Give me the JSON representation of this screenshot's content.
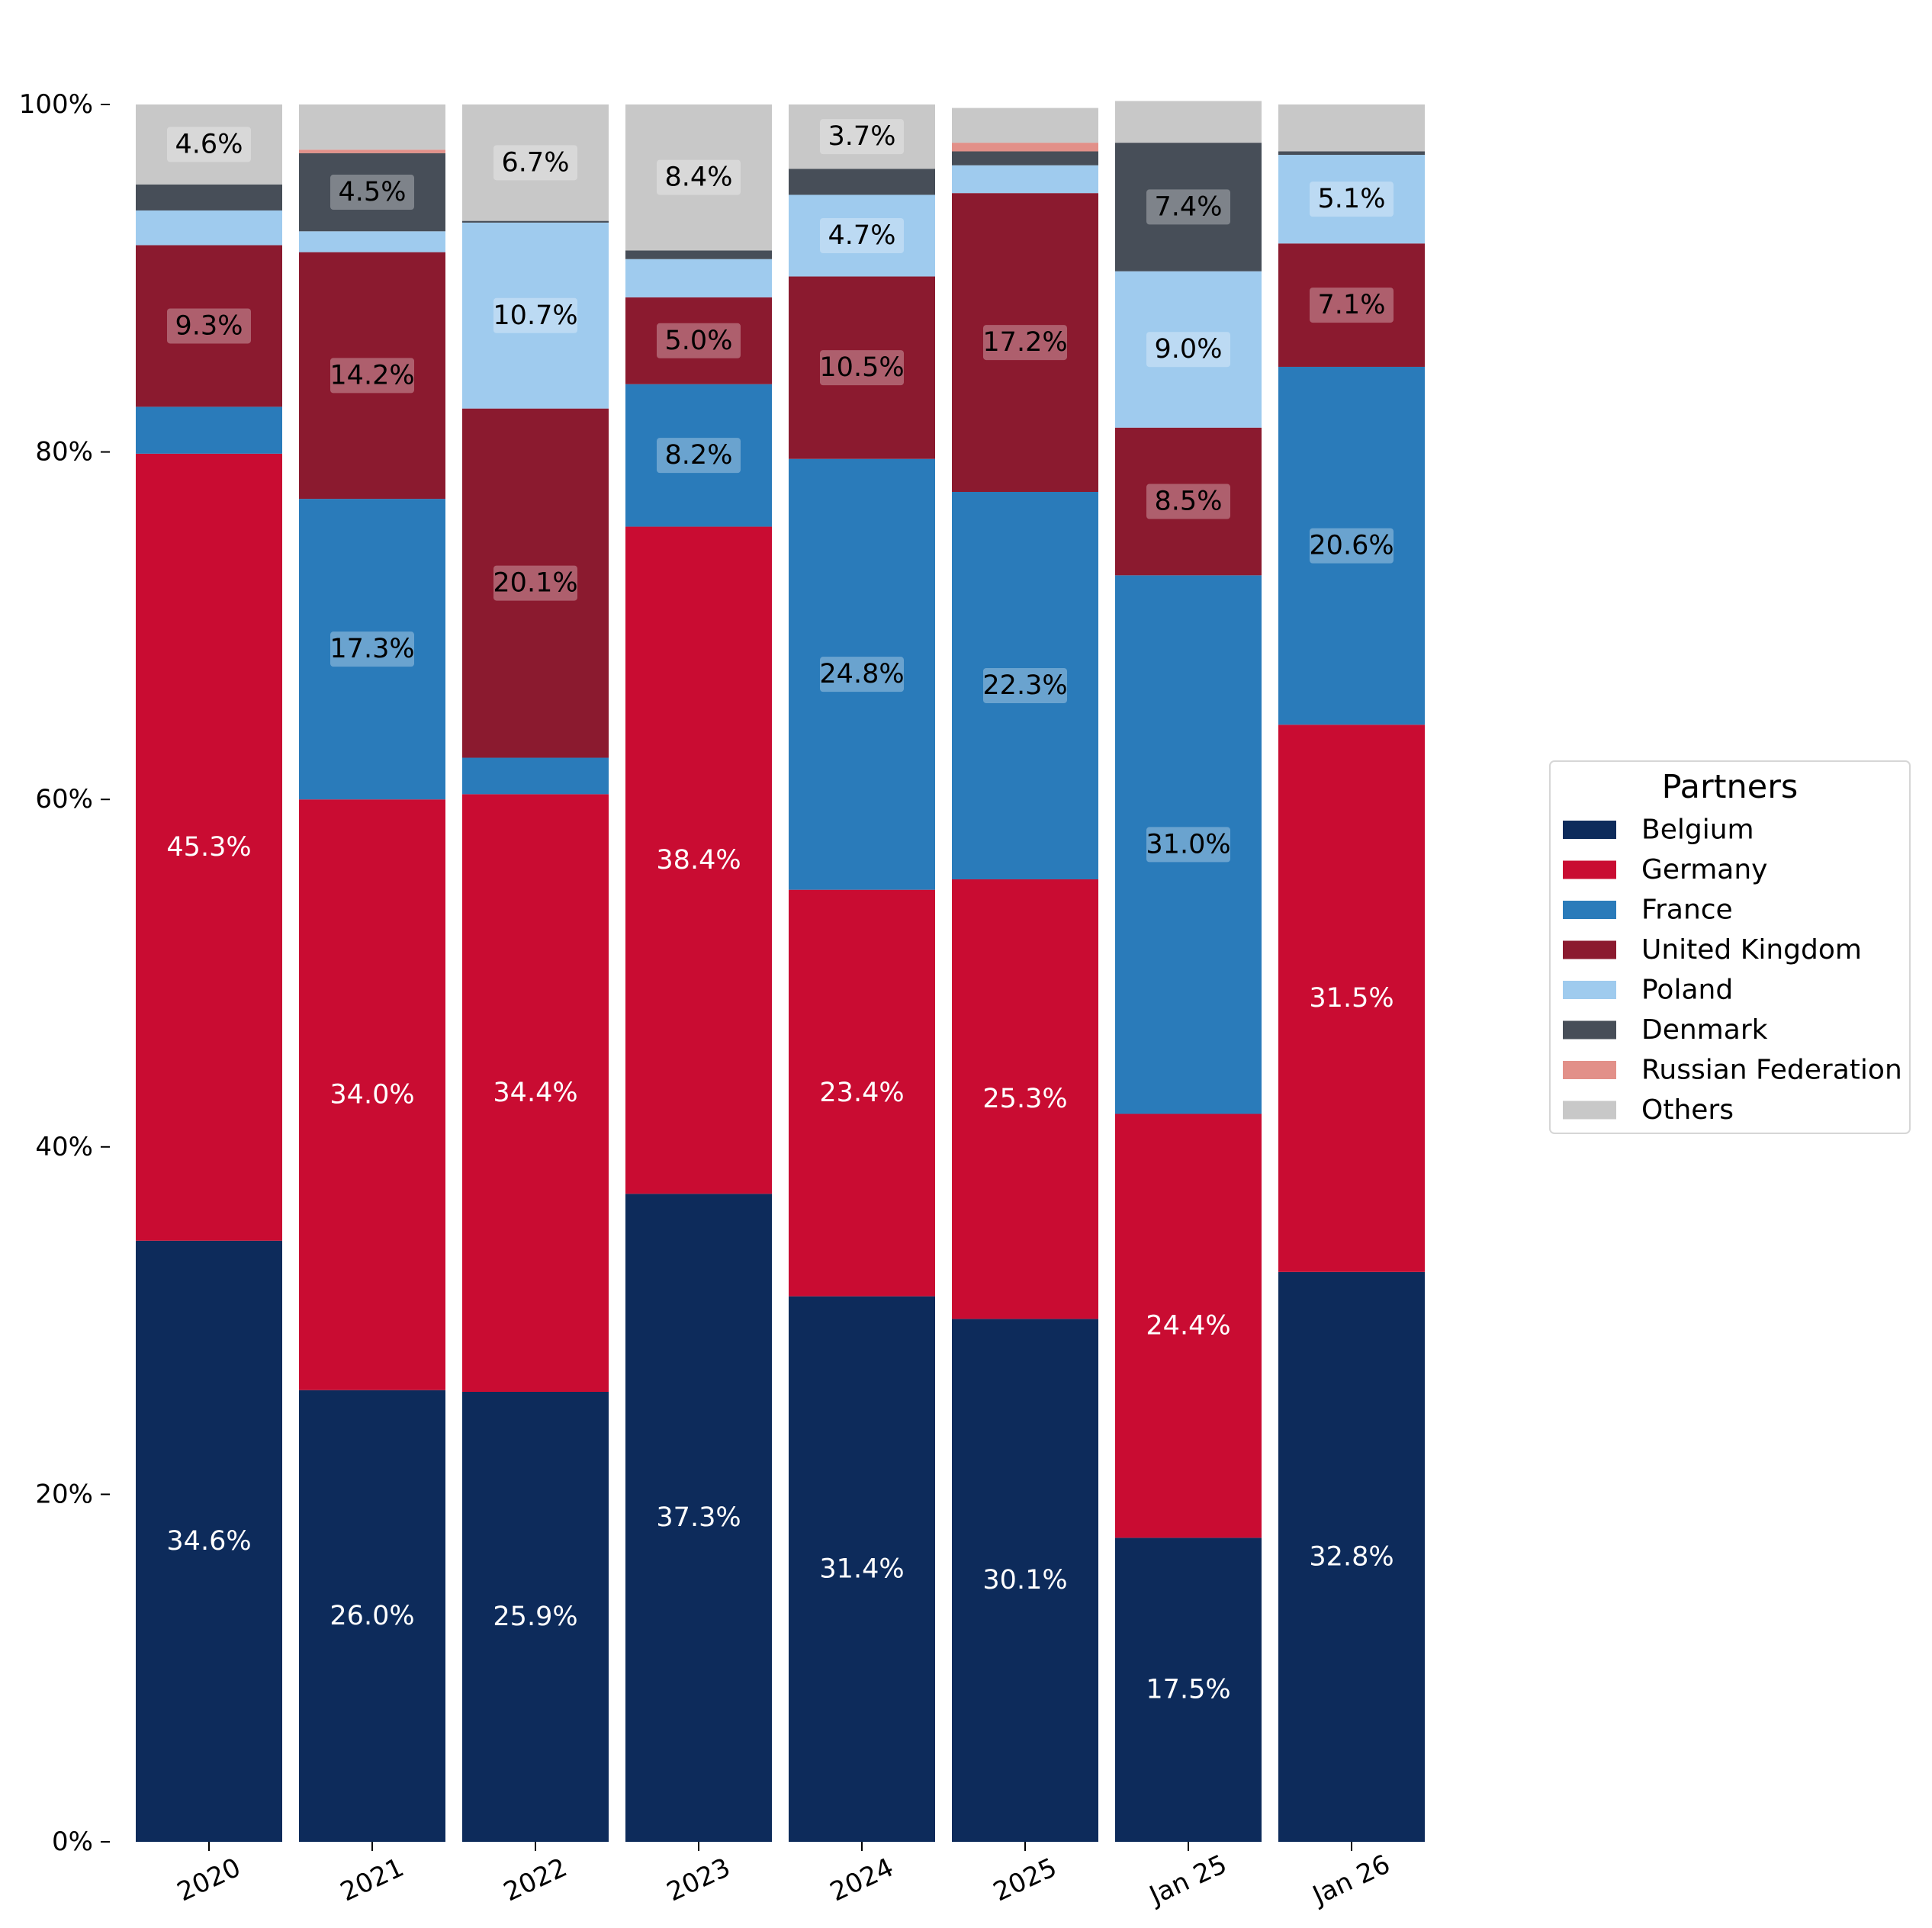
{
  "chart_data": {
    "type": "bar",
    "stacked": true,
    "categories": [
      "2020",
      "2021",
      "2022",
      "2023",
      "2024",
      "2025",
      "Jan 25",
      "Jan 26"
    ],
    "ylim": [
      0,
      100
    ],
    "yticks": [
      0,
      20,
      40,
      60,
      80,
      100
    ],
    "ytick_labels": [
      "0%",
      "20%",
      "40%",
      "60%",
      "80%",
      "100%"
    ],
    "legend": {
      "title": "Partners",
      "placement": "center-right"
    },
    "series": [
      {
        "name": "Belgium",
        "color": "#0d2b5b",
        "values": [
          34.6,
          26.0,
          25.9,
          37.3,
          31.4,
          30.1,
          17.5,
          32.8
        ],
        "labels": [
          "34.6%",
          "26.0%",
          "25.9%",
          "37.3%",
          "31.4%",
          "30.1%",
          "17.5%",
          "32.8%"
        ]
      },
      {
        "name": "Germany",
        "color": "#c90c32",
        "values": [
          45.3,
          34.0,
          34.4,
          38.4,
          23.4,
          25.3,
          24.4,
          31.5
        ],
        "labels": [
          "45.3%",
          "34.0%",
          "34.4%",
          "38.4%",
          "23.4%",
          "25.3%",
          "24.4%",
          "31.5%"
        ]
      },
      {
        "name": "France",
        "color": "#2a7bba",
        "values": [
          2.7,
          17.3,
          2.1,
          8.2,
          24.8,
          22.3,
          31.0,
          20.6
        ],
        "labels": [
          "",
          "17.3%",
          "",
          "8.2%",
          "24.8%",
          "22.3%",
          "31.0%",
          "20.6%"
        ]
      },
      {
        "name": "United Kingdom",
        "color": "#8b1a2f",
        "values": [
          9.3,
          14.2,
          20.1,
          5.0,
          10.5,
          17.2,
          8.5,
          7.1
        ],
        "labels": [
          "9.3%",
          "14.2%",
          "20.1%",
          "5.0%",
          "10.5%",
          "17.2%",
          "8.5%",
          "7.1%"
        ]
      },
      {
        "name": "Poland",
        "color": "#9fcbee",
        "values": [
          2.0,
          1.2,
          10.7,
          2.2,
          4.7,
          1.6,
          9.0,
          5.1
        ],
        "labels": [
          "",
          "",
          "10.7%",
          "",
          "4.7%",
          "",
          "9.0%",
          "5.1%"
        ]
      },
      {
        "name": "Denmark",
        "color": "#474e58",
        "values": [
          1.5,
          4.5,
          0.1,
          0.5,
          1.5,
          0.8,
          7.4,
          0.2
        ],
        "labels": [
          "",
          "4.5%",
          "",
          "",
          "",
          "",
          "7.4%",
          ""
        ]
      },
      {
        "name": "Russian Federation",
        "color": "#e29089",
        "values": [
          0.0,
          0.2,
          0.0,
          0.0,
          0.0,
          0.5,
          0.0,
          0.0
        ],
        "labels": [
          "",
          "",
          "",
          "",
          "",
          "",
          "",
          ""
        ]
      },
      {
        "name": "Others",
        "color": "#c8c8c8",
        "values": [
          4.6,
          2.6,
          6.7,
          8.4,
          3.7,
          2.0,
          2.4,
          2.7
        ],
        "labels": [
          "4.6%",
          "",
          "6.7%",
          "8.4%",
          "3.7%",
          "",
          "",
          ""
        ]
      }
    ]
  }
}
